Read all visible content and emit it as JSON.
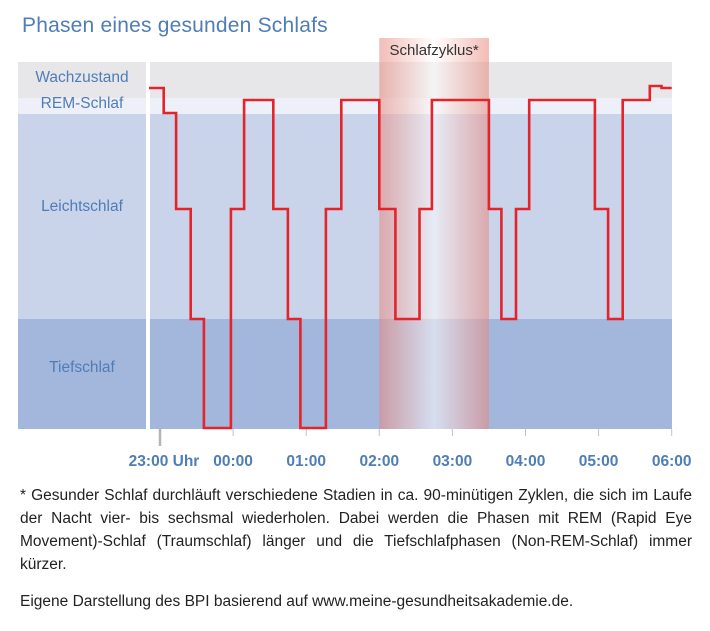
{
  "title": "Phasen eines gesunden Schlafs",
  "chart_data": {
    "type": "line",
    "title": "Phasen eines gesunden Schlafs",
    "xlabel": "",
    "ylabel": "",
    "x_ticks": [
      "23:00 Uhr",
      "00:00",
      "01:00",
      "02:00",
      "03:00",
      "04:00",
      "05:00",
      "06:00"
    ],
    "y_categories": [
      "Wachzustand",
      "REM-Schlaf",
      "Leichtschlaf",
      "Tiefschlaf"
    ],
    "x_unit": "hours since 23:00",
    "xlim": [
      0,
      7
    ],
    "levels": {
      "Wachzustand": 4,
      "REM-Schlaf": 3,
      "Leichtschlaf_high": 2.6,
      "Leichtschlaf": 2,
      "Tiefschlaf_high": 1,
      "Tiefschlaf": 0
    },
    "series": [
      {
        "name": "",
        "color": "#e3242b",
        "points": [
          [
            -0.15,
            4
          ],
          [
            0.05,
            4
          ],
          [
            0.05,
            3.05
          ],
          [
            0.22,
            3.05
          ],
          [
            0.22,
            2
          ],
          [
            0.42,
            2
          ],
          [
            0.42,
            1
          ],
          [
            0.6,
            1
          ],
          [
            0.6,
            0
          ],
          [
            0.97,
            0
          ],
          [
            0.97,
            2
          ],
          [
            1.15,
            2
          ],
          [
            1.15,
            3
          ],
          [
            1.55,
            3
          ],
          [
            1.55,
            2
          ],
          [
            1.75,
            2
          ],
          [
            1.75,
            1
          ],
          [
            1.92,
            1
          ],
          [
            1.92,
            0
          ],
          [
            2.27,
            0
          ],
          [
            2.27,
            2
          ],
          [
            2.48,
            2
          ],
          [
            2.48,
            3
          ],
          [
            3.0,
            3
          ],
          [
            3.0,
            2
          ],
          [
            3.22,
            2
          ],
          [
            3.22,
            1
          ],
          [
            3.55,
            1
          ],
          [
            3.55,
            2
          ],
          [
            3.72,
            2
          ],
          [
            3.72,
            3
          ],
          [
            4.5,
            3
          ],
          [
            4.5,
            2
          ],
          [
            4.67,
            2
          ],
          [
            4.67,
            1
          ],
          [
            4.87,
            1
          ],
          [
            4.87,
            2
          ],
          [
            5.05,
            2
          ],
          [
            5.05,
            3
          ],
          [
            5.95,
            3
          ],
          [
            5.95,
            2
          ],
          [
            6.13,
            2
          ],
          [
            6.13,
            1
          ],
          [
            6.33,
            1
          ],
          [
            6.33,
            3
          ],
          [
            6.7,
            3
          ],
          [
            6.7,
            3.15
          ],
          [
            6.86,
            3.15
          ],
          [
            6.86,
            4
          ],
          [
            7.0,
            4
          ]
        ]
      }
    ],
    "highlight": {
      "label": "Schlafzyklus*",
      "x_start": 3.0,
      "x_end": 4.5
    },
    "grid": false
  },
  "footnote": "* Gesunder Schlaf durchläuft verschiedene Stadien in ca. 90-minütigen Zyklen, die sich im Laufe der Nacht vier- bis sechsmal wiederholen. Dabei werden die Phasen mit REM (Rapid Eye Movement)-Schlaf (Traumschlaf) länger und die Tiefschlafphasen (Non-REM-Schlaf) immer kürzer.",
  "source": "Eigene Darstellung des BPI basierend auf www.meine-gesundheitsakademie.de.",
  "colors": {
    "title": "#4f7db6",
    "axis_text": "#4f7db6",
    "line": "#e3242b",
    "wach_band": "#e7e7e9",
    "rem_band": "#edf0f8",
    "leicht_band": "#c9d3ea",
    "tief_band": "#a3b6dc"
  }
}
